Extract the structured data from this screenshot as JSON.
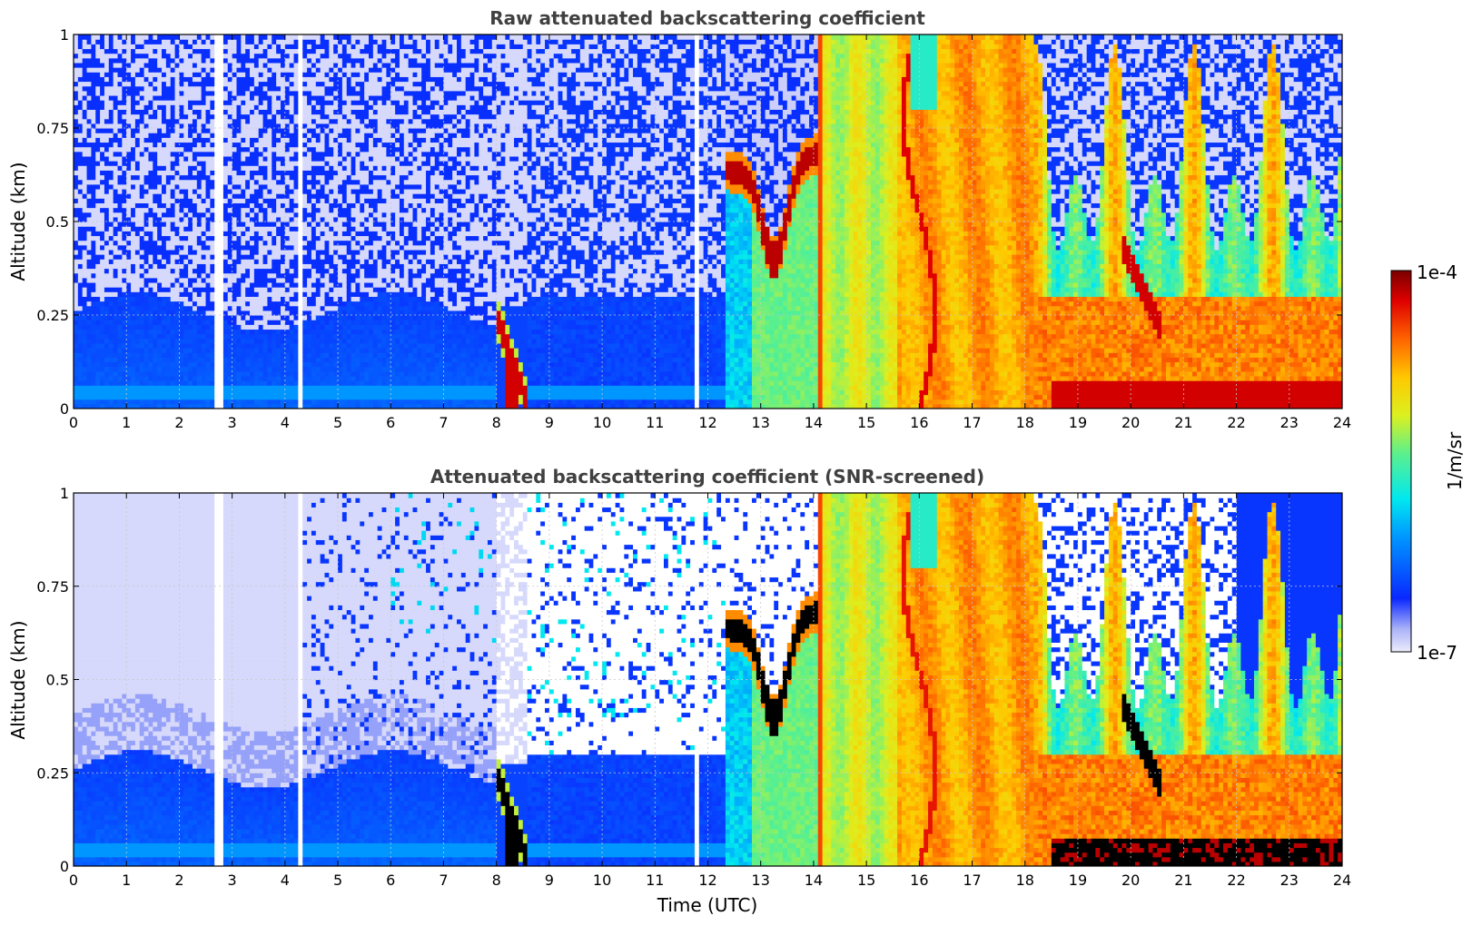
{
  "figure": {
    "colorbar": {
      "max_label": "1e-4",
      "min_label": "1e-7",
      "unit_label": "1/m/sr",
      "scale": "log",
      "range": [
        1e-07,
        0.0001
      ]
    },
    "colors": {
      "background": "#ffffff",
      "title_text": "#404040",
      "grid": "#c8c8c8",
      "saturated": "#000000"
    }
  },
  "chart_data": [
    {
      "type": "heatmap",
      "title": "Raw attenuated backscattering coefficient",
      "xlabel": "",
      "ylabel": "Altitude (km)",
      "xlim": [
        0,
        24
      ],
      "ylim": [
        0,
        1
      ],
      "x_ticks": [
        "0",
        "1",
        "2",
        "3",
        "4",
        "5",
        "6",
        "7",
        "8",
        "9",
        "10",
        "11",
        "12",
        "13",
        "14",
        "15",
        "16",
        "17",
        "18",
        "19",
        "20",
        "21",
        "22",
        "23",
        "24"
      ],
      "y_ticks": [
        "0",
        "0.25",
        "0.5",
        "0.75",
        "1"
      ],
      "grid": true,
      "value_scale": "log",
      "value_range": [
        1e-07,
        0.0001
      ],
      "features": [
        {
          "time_range": [
            0,
            8
          ],
          "altitude_range": [
            0,
            0.25
          ],
          "level": "low (~1e-6)"
        },
        {
          "time_range": [
            0,
            24
          ],
          "altitude_range": [
            0.03,
            0.06
          ],
          "level": "low-mid band"
        },
        {
          "time_range": [
            8.0,
            8.5
          ],
          "altitude_range": [
            0,
            0.3
          ],
          "level": "high (~1e-4) descending layer"
        },
        {
          "time_range": [
            12.3,
            14.1
          ],
          "altitude_range": [
            0.35,
            0.8
          ],
          "level": "high (~1e-4) cloud layer"
        },
        {
          "time_range": [
            12.8,
            14.1
          ],
          "altitude_range": [
            0,
            1
          ],
          "level": "mid (~1e-5)"
        },
        {
          "time_range": [
            14.1,
            15.6
          ],
          "altitude_range": [
            0,
            1
          ],
          "level": "mid-high (~3e-5)"
        },
        {
          "time_range": [
            15.6,
            18.2
          ],
          "altitude_range": [
            0,
            1
          ],
          "level": "high (~5e-5)"
        },
        {
          "time_range": [
            18.2,
            24
          ],
          "altitude_range": [
            0,
            0.3
          ],
          "level": "high (~5e-5) boundary layer"
        },
        {
          "time_range": [
            18.5,
            24
          ],
          "altitude_range": [
            0,
            0.08
          ],
          "level": "very high (~1e-4)"
        },
        {
          "time_range": [
            18.2,
            24
          ],
          "altitude_range": [
            0.3,
            1
          ],
          "level": "variable columns (1e-6 to 5e-5)"
        }
      ]
    },
    {
      "type": "heatmap",
      "title": "Attenuated backscattering coefficient (SNR-screened)",
      "xlabel": "Time (UTC)",
      "ylabel": "Altitude (km)",
      "xlim": [
        0,
        24
      ],
      "ylim": [
        0,
        1
      ],
      "x_ticks": [
        "0",
        "1",
        "2",
        "3",
        "4",
        "5",
        "6",
        "7",
        "8",
        "9",
        "10",
        "11",
        "12",
        "13",
        "14",
        "15",
        "16",
        "17",
        "18",
        "19",
        "20",
        "21",
        "22",
        "23",
        "24"
      ],
      "y_ticks": [
        "0",
        "0.25",
        "0.5",
        "0.75",
        "1"
      ],
      "grid": true,
      "value_scale": "log",
      "value_range": [
        1e-07,
        0.0001
      ],
      "features": [
        {
          "time_range": [
            0,
            5
          ],
          "altitude_range": [
            0.25,
            1
          ],
          "level": "very low (~1e-7)"
        },
        {
          "time_range": [
            0,
            8
          ],
          "altitude_range": [
            0,
            0.25
          ],
          "level": "low (~1e-6)"
        },
        {
          "time_range": [
            8.0,
            8.5
          ],
          "altitude_range": [
            0,
            0.3
          ],
          "level": "saturated (>1e-4)"
        },
        {
          "time_range": [
            12.3,
            14.1
          ],
          "altitude_range": [
            0.35,
            0.8
          ],
          "level": "saturated (>1e-4) cloud layer"
        },
        {
          "time_range": [
            14.1,
            15.6
          ],
          "altitude_range": [
            0,
            1
          ],
          "level": "mid-high (~3e-5)"
        },
        {
          "time_range": [
            15.6,
            18.2
          ],
          "altitude_range": [
            0,
            1
          ],
          "level": "high (~5e-5)"
        },
        {
          "time_range": [
            18.5,
            24
          ],
          "altitude_range": [
            0,
            0.1
          ],
          "level": "saturated (>1e-4)"
        },
        {
          "time_range": [
            18.2,
            24
          ],
          "altitude_range": [
            0.1,
            0.35
          ],
          "level": "high (~5e-5)"
        },
        {
          "time_range": [
            18.2,
            23
          ],
          "altitude_range": [
            0.35,
            1
          ],
          "level": "screened / variable columns"
        },
        {
          "time_range": [
            22,
            24
          ],
          "altitude_range": [
            0.35,
            1
          ],
          "level": "low (~1e-6)"
        }
      ]
    }
  ]
}
